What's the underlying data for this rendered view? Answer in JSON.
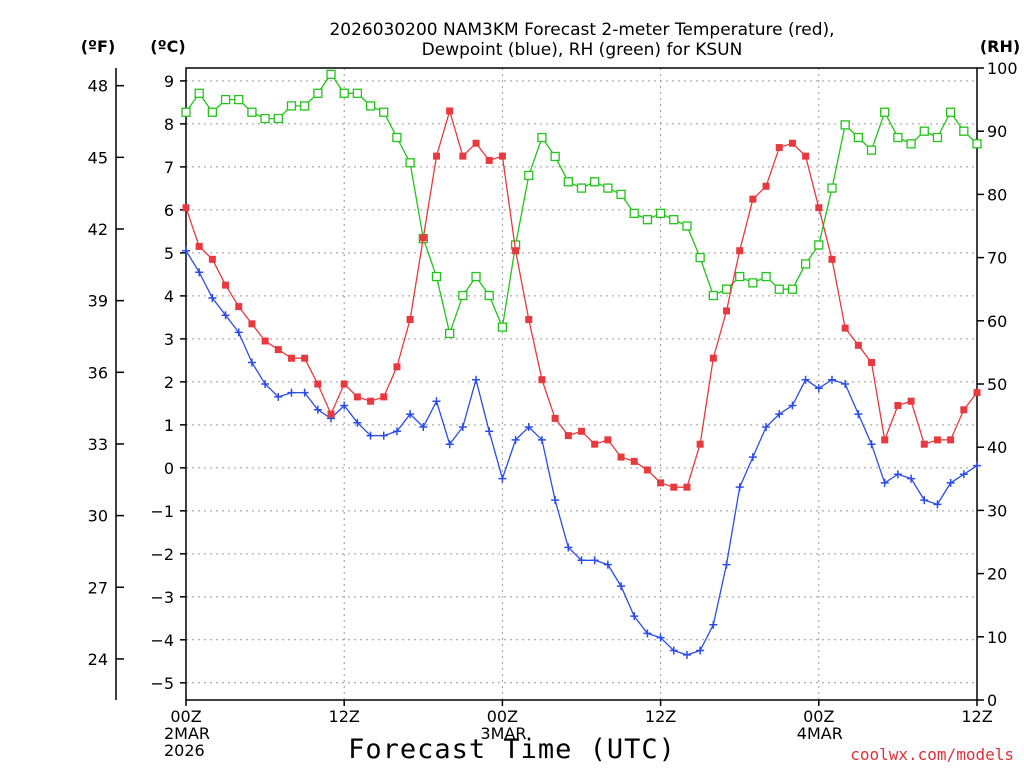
{
  "chart_data": {
    "type": "line",
    "title": [
      "2026030200 NAM3KM Forecast 2-meter Temperature (red),",
      "Dewpoint (blue), RH (green) for KSUN"
    ],
    "xlabel": "Forecast Time (UTC)",
    "x_hours": {
      "min": 0,
      "max": 60,
      "step": 1
    },
    "x_ticks": [
      {
        "h": 0,
        "lines": [
          "00Z",
          "2MAR",
          "2026"
        ]
      },
      {
        "h": 12,
        "lines": [
          "12Z"
        ]
      },
      {
        "h": 24,
        "lines": [
          "00Z",
          "3MAR"
        ]
      },
      {
        "h": 36,
        "lines": [
          "12Z"
        ]
      },
      {
        "h": 48,
        "lines": [
          "00Z",
          "4MAR"
        ]
      },
      {
        "h": 60,
        "lines": [
          "12Z"
        ]
      }
    ],
    "y_celsius": {
      "label": "(ºC)",
      "min": -5.4,
      "max": 9.3,
      "ticks": [
        9,
        8,
        7,
        6,
        5,
        4,
        3,
        2,
        1,
        0,
        -1,
        -2,
        -3,
        -4,
        -5
      ]
    },
    "y_fahrenheit": {
      "label": "(ºF)",
      "ticks": [
        48,
        45,
        42,
        39,
        36,
        33,
        30,
        27,
        24
      ]
    },
    "y_rh": {
      "label": "(RH)",
      "min": 0,
      "max": 100,
      "ticks": [
        100,
        90,
        80,
        70,
        60,
        50,
        40,
        30,
        20,
        10,
        0
      ]
    },
    "series": [
      {
        "name": "Temperature",
        "unit": "C",
        "color": "#e8393f",
        "marker": "filled-square",
        "values": [
          6.05,
          5.15,
          4.85,
          4.25,
          3.75,
          3.35,
          2.95,
          2.75,
          2.55,
          2.55,
          1.95,
          1.25,
          1.95,
          1.65,
          1.55,
          1.65,
          2.35,
          3.45,
          5.35,
          7.25,
          8.3,
          7.25,
          7.55,
          7.15,
          7.25,
          5.05,
          3.45,
          2.05,
          1.15,
          0.75,
          0.85,
          0.55,
          0.65,
          0.25,
          0.15,
          -0.05,
          -0.35,
          -0.45,
          -0.45,
          0.55,
          2.55,
          3.65,
          5.05,
          6.25,
          6.55,
          7.45,
          7.55,
          7.25,
          6.05,
          4.85,
          3.25,
          2.85,
          2.45,
          0.65,
          1.45,
          1.55,
          0.55,
          0.65,
          0.65,
          1.35,
          1.75
        ]
      },
      {
        "name": "Dewpoint",
        "unit": "C",
        "color": "#2b4de6",
        "marker": "plus",
        "values": [
          5.05,
          4.55,
          3.95,
          3.55,
          3.15,
          2.45,
          1.95,
          1.65,
          1.75,
          1.75,
          1.35,
          1.15,
          1.45,
          1.05,
          0.75,
          0.75,
          0.85,
          1.25,
          0.95,
          1.55,
          0.55,
          0.95,
          2.05,
          0.85,
          -0.25,
          0.65,
          0.95,
          0.65,
          -0.75,
          -1.85,
          -2.15,
          -2.15,
          -2.25,
          -2.75,
          -3.45,
          -3.85,
          -3.95,
          -4.25,
          -4.35,
          -4.25,
          -3.65,
          -2.25,
          -0.45,
          0.25,
          0.95,
          1.25,
          1.45,
          2.05,
          1.85,
          2.05,
          1.95,
          1.25,
          0.55,
          -0.35,
          -0.15,
          -0.25,
          -0.75,
          -0.85,
          -0.35,
          -0.15,
          0.05
        ]
      },
      {
        "name": "RH",
        "unit": "%",
        "color": "#22c41a",
        "marker": "open-square",
        "values": [
          93,
          96,
          93,
          95,
          95,
          93,
          92,
          92,
          94,
          94,
          96,
          99,
          96,
          96,
          94,
          93,
          89,
          85,
          73,
          67,
          58,
          64,
          67,
          64,
          59,
          72,
          83,
          89,
          86,
          82,
          81,
          82,
          81,
          80,
          77,
          76,
          77,
          76,
          75,
          70,
          64,
          65,
          67,
          66,
          67,
          65,
          65,
          69,
          72,
          81,
          91,
          89,
          87,
          93,
          89,
          88,
          90,
          89,
          93,
          90,
          88
        ]
      }
    ]
  },
  "credit": "coolwx.com/models"
}
